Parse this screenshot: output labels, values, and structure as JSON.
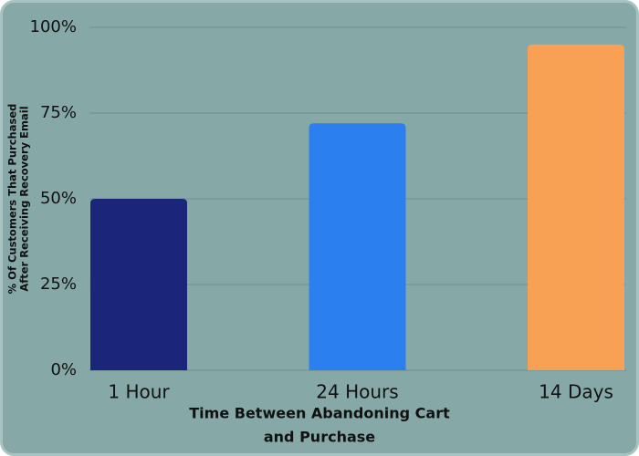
{
  "chart_data": {
    "type": "bar",
    "categories": [
      "1 Hour",
      "24 Hours",
      "14 Days"
    ],
    "values": [
      50,
      72,
      95
    ],
    "colors": [
      "#1b267a",
      "#2b7fef",
      "#f8a154"
    ],
    "ylim": [
      0,
      100
    ],
    "yticks": [
      {
        "value": 0,
        "label": "0%"
      },
      {
        "value": 25,
        "label": "25%"
      },
      {
        "value": 50,
        "label": "50%"
      },
      {
        "value": 75,
        "label": "75%"
      },
      {
        "value": 100,
        "label": "100%"
      }
    ],
    "xlabel": [
      "Time Between Abandoning Cart",
      "and Purchase"
    ],
    "ylabel": [
      "% Of Customers That Purchased",
      "After Receiving Recovery Email"
    ],
    "grid": true
  }
}
